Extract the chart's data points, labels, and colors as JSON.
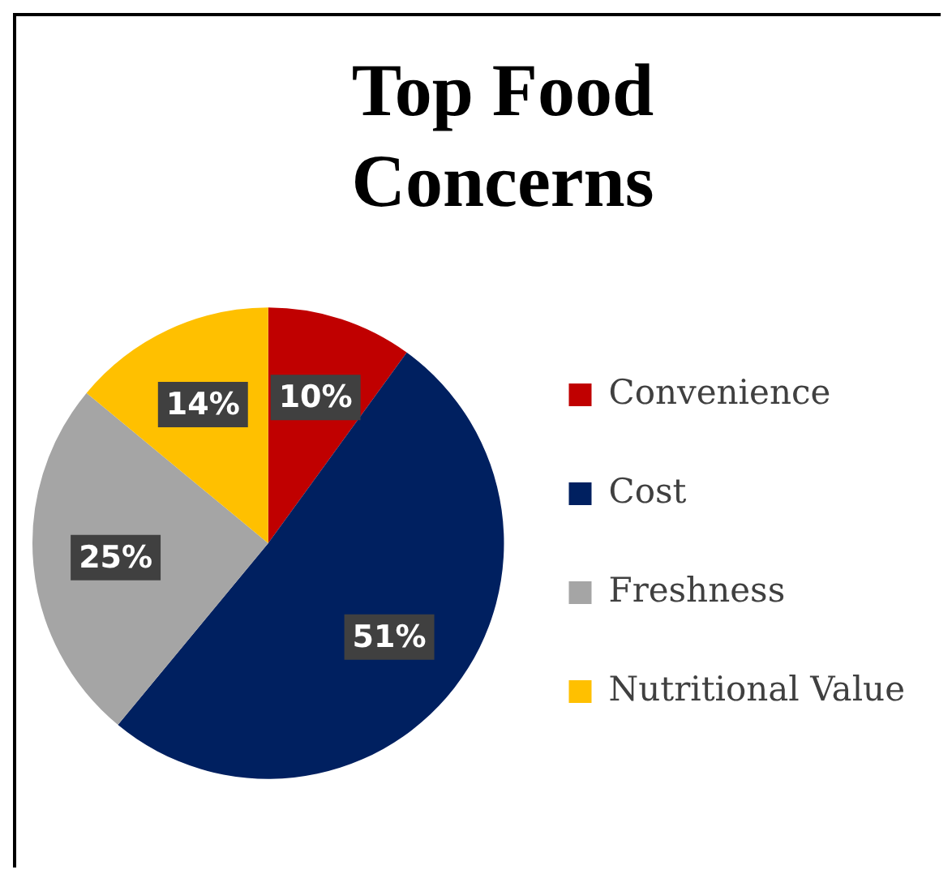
{
  "chart_data": {
    "type": "pie",
    "title": "Top Food Concerns",
    "categories": [
      "Convenience",
      "Cost",
      "Freshness",
      "Nutritional Value"
    ],
    "values": [
      10,
      51,
      25,
      14
    ],
    "colors": [
      "#c00000",
      "#002060",
      "#a5a5a5",
      "#ffc000"
    ],
    "value_labels": [
      "10%",
      "51%",
      "25%",
      "14%"
    ],
    "legend": "right"
  }
}
